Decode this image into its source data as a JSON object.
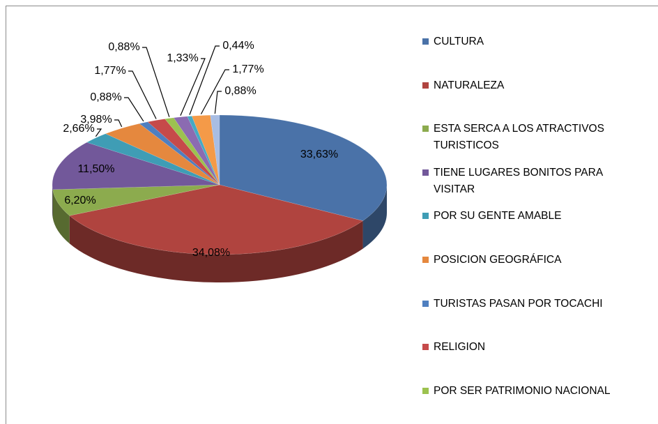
{
  "chart_data": {
    "type": "pie",
    "categories": [
      "CULTURA",
      "NATURALEZA",
      "ESTA SERCA A LOS ATRACTIVOS TURISTICOS",
      "TIENE LUGARES BONITOS PARA VISITAR",
      "POR SU GENTE AMABLE",
      "POSICION GEOGRÁFICA",
      "TURISTAS PASAN POR TOCACHI",
      "RELIGION",
      "POR SER PATRIMONIO NACIONAL",
      null,
      null,
      null,
      null
    ],
    "values": [
      33.63,
      34.08,
      6.2,
      11.5,
      2.66,
      3.98,
      0.88,
      1.77,
      0.88,
      1.33,
      0.44,
      1.77,
      0.88
    ],
    "value_labels": [
      "33,63%",
      "34,08%",
      "6,20%",
      "11,50%",
      "2,66%",
      "3,98%",
      "0,88%",
      "1,77%",
      "0,88%",
      "1,33%",
      "0,44%",
      "1,77%",
      "0,88%"
    ],
    "colors": [
      "#4A72A8",
      "#B0443F",
      "#8CAB4E",
      "#72589A",
      "#3F9DB5",
      "#E5883E",
      "#4F7FC0",
      "#C64A4A",
      "#9CC24F",
      "#8B6BB1",
      "#45A9C4",
      "#F49A48",
      "#A8BDE3"
    ]
  }
}
